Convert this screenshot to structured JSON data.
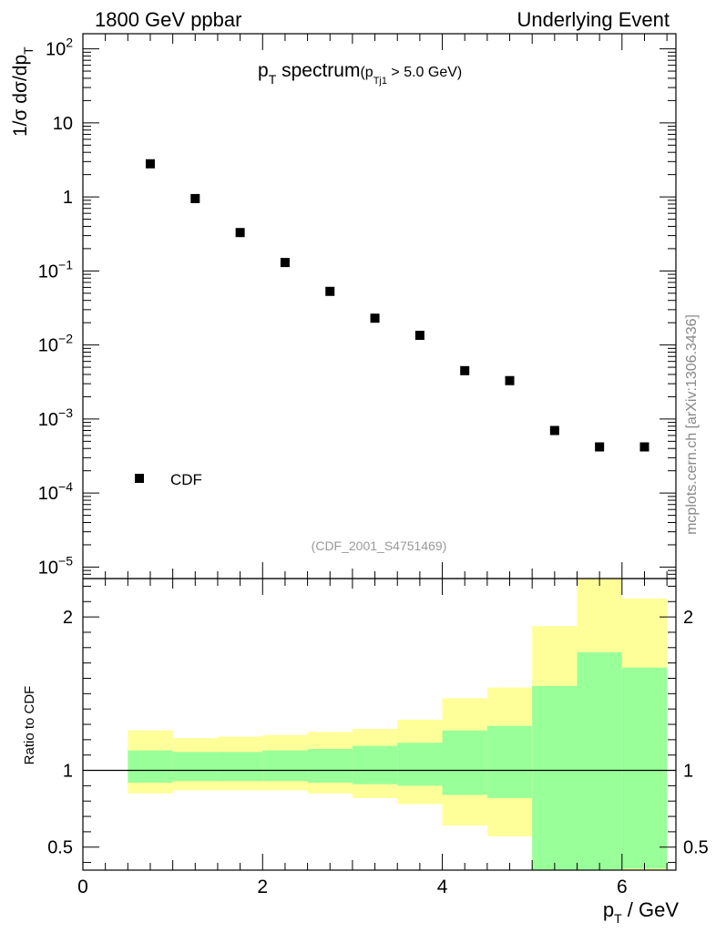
{
  "header": {
    "left": "1800 GeV ppbar",
    "right": "Underlying Event"
  },
  "watermark": "mcplots.cern.ch [arXiv:1306.3436]",
  "chart_data": [
    {
      "type": "scatter",
      "panel": "main",
      "title": {
        "main": "p",
        "main_sub": "T",
        "rest": " spectrum",
        "cut_open": "(p",
        "cut_sub": "Tj1",
        "cut_rest": " > 5.0 GeV)"
      },
      "ylabel": {
        "main": "1/σ dσ/dp",
        "sub": "T"
      },
      "yscale": "log",
      "ylim": [
        7e-06,
        160
      ],
      "xlim": [
        0,
        6.6
      ],
      "yticks": [
        {
          "value": 100,
          "base": "10",
          "exp": "2"
        },
        {
          "value": 10,
          "base": "10",
          "exp": ""
        },
        {
          "value": 1,
          "base": "1",
          "exp": ""
        },
        {
          "value": 0.1,
          "base": "10",
          "exp": "−1"
        },
        {
          "value": 0.01,
          "base": "10",
          "exp": "−2"
        },
        {
          "value": 0.001,
          "base": "10",
          "exp": "−3"
        },
        {
          "value": 0.0001,
          "base": "10",
          "exp": "−4"
        },
        {
          "value": 1e-05,
          "base": "10",
          "exp": "−5"
        }
      ],
      "series": [
        {
          "name": "CDF",
          "color": "#000000",
          "x": [
            0.75,
            1.25,
            1.75,
            2.25,
            2.75,
            3.25,
            3.75,
            4.25,
            4.75,
            5.25,
            5.75,
            6.25
          ],
          "y": [
            2.8,
            0.95,
            0.33,
            0.13,
            0.053,
            0.023,
            0.0135,
            0.0045,
            0.0033,
            0.0007,
            0.00042,
            0.00042
          ]
        }
      ],
      "legend": {
        "position": "bottom-left",
        "entries": [
          "CDF"
        ]
      },
      "annotation": "(CDF_2001_S4751469)"
    },
    {
      "type": "area",
      "panel": "ratio",
      "ylabel": "Ratio to CDF",
      "xlabel": {
        "main": "p",
        "sub": "T",
        "rest": " / GeV"
      },
      "xlim": [
        0,
        6.6
      ],
      "ylim": [
        0.35,
        2.25
      ],
      "xticks": [
        0,
        2,
        4,
        6
      ],
      "xtick_labels": [
        "0",
        "2",
        "4",
        "6"
      ],
      "yticks": [
        0.5,
        1,
        2
      ],
      "ytick_labels": [
        "0.5",
        "1",
        "2"
      ],
      "reference_line": 1,
      "bins": [
        {
          "lo": 0.5,
          "hi": 1.0,
          "inner": [
            0.92,
            1.13
          ],
          "outer": [
            0.85,
            1.26
          ]
        },
        {
          "lo": 1.0,
          "hi": 1.5,
          "inner": [
            0.93,
            1.12
          ],
          "outer": [
            0.87,
            1.21
          ]
        },
        {
          "lo": 1.5,
          "hi": 2.0,
          "inner": [
            0.93,
            1.12
          ],
          "outer": [
            0.87,
            1.22
          ]
        },
        {
          "lo": 2.0,
          "hi": 2.5,
          "inner": [
            0.93,
            1.13
          ],
          "outer": [
            0.87,
            1.23
          ]
        },
        {
          "lo": 2.5,
          "hi": 3.0,
          "inner": [
            0.92,
            1.14
          ],
          "outer": [
            0.85,
            1.25
          ]
        },
        {
          "lo": 3.0,
          "hi": 3.5,
          "inner": [
            0.91,
            1.16
          ],
          "outer": [
            0.82,
            1.27
          ]
        },
        {
          "lo": 3.5,
          "hi": 4.0,
          "inner": [
            0.9,
            1.18
          ],
          "outer": [
            0.78,
            1.33
          ]
        },
        {
          "lo": 4.0,
          "hi": 4.5,
          "inner": [
            0.84,
            1.26
          ],
          "outer": [
            0.64,
            1.47
          ]
        },
        {
          "lo": 4.5,
          "hi": 5.0,
          "inner": [
            0.82,
            1.29
          ],
          "outer": [
            0.57,
            1.54
          ]
        },
        {
          "lo": 5.0,
          "hi": 5.5,
          "inner": [
            0.3,
            1.55
          ],
          "outer": [
            0.55,
            1.94
          ]
        },
        {
          "lo": 5.5,
          "hi": 6.0,
          "inner": [
            0.3,
            1.77
          ],
          "outer": [
            0.3,
            2.3
          ]
        },
        {
          "lo": 6.0,
          "hi": 6.5,
          "inner": [
            0.36,
            1.67
          ],
          "outer": [
            0.33,
            2.12
          ]
        }
      ],
      "colors": {
        "inner": "#99ff99",
        "outer": "#ffff99"
      }
    }
  ]
}
